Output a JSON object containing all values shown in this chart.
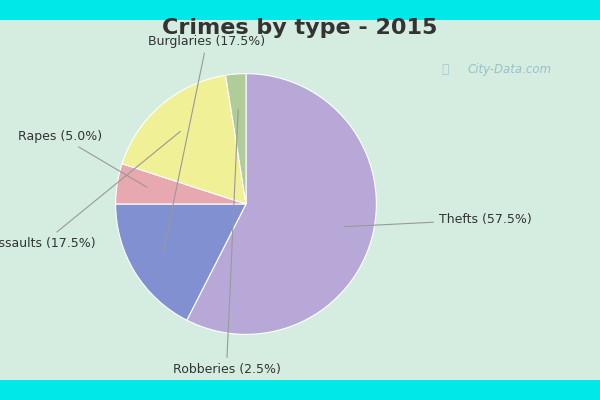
{
  "title": "Crimes by type - 2015",
  "slices": [
    {
      "label": "Thefts",
      "pct": 57.5,
      "color": "#b8a8d8"
    },
    {
      "label": "Burglaries",
      "pct": 17.5,
      "color": "#8090d0"
    },
    {
      "label": "Rapes",
      "pct": 5.0,
      "color": "#e8a8b0"
    },
    {
      "label": "Assaults",
      "pct": 17.5,
      "color": "#f0f096"
    },
    {
      "label": "Robberies",
      "pct": 2.5,
      "color": "#b0cc98"
    }
  ],
  "bg_cyan": "#00e8e8",
  "bg_inner": "#d4ede0",
  "title_color": "#333333",
  "title_fontsize": 16,
  "label_fontsize": 9,
  "watermark": "City-Data.com",
  "startangle": 90,
  "label_color": "#333333",
  "line_color": "#999999"
}
